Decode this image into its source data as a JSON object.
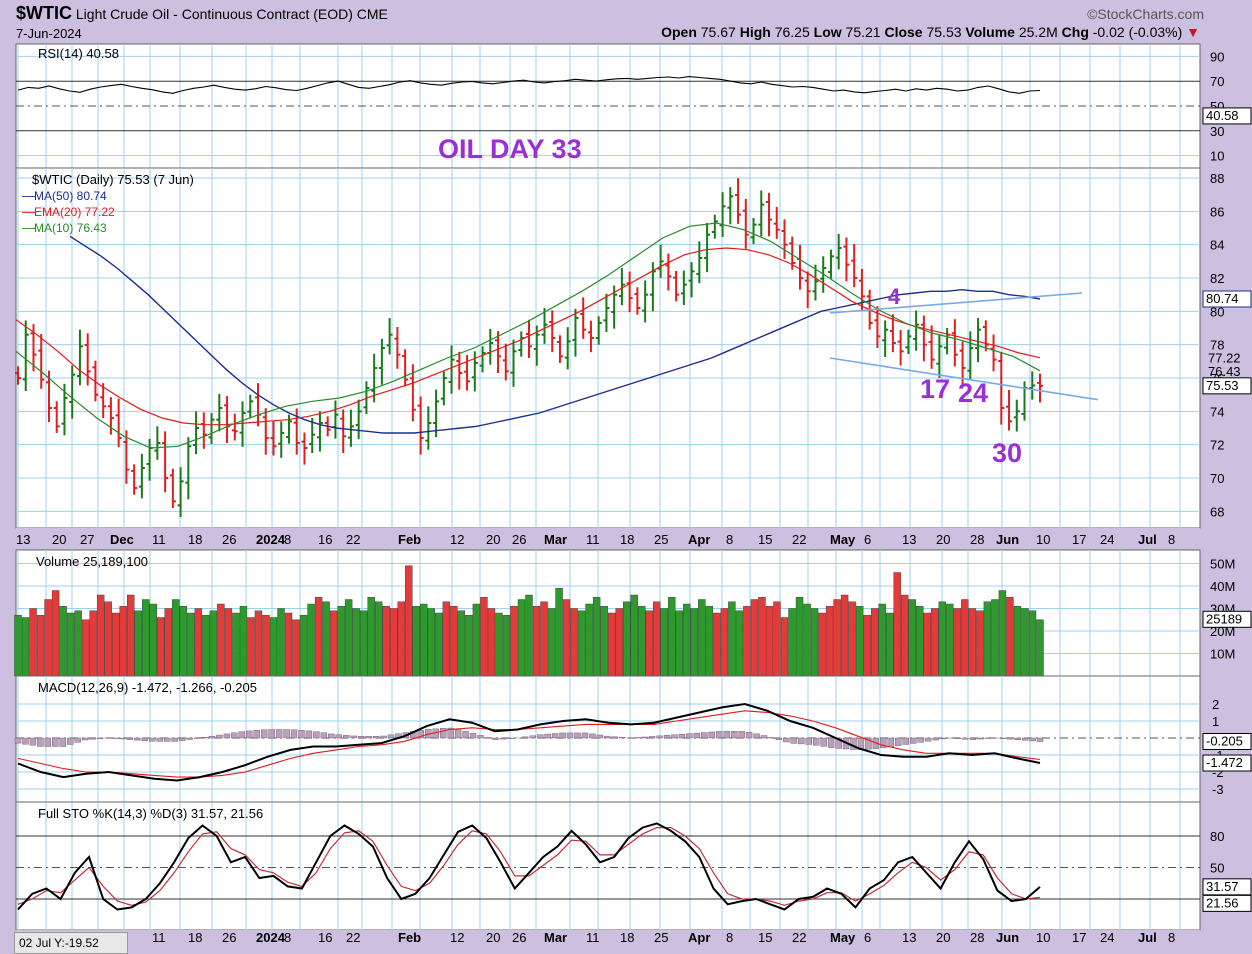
{
  "header": {
    "symbol": "$WTIC",
    "title": "Light Crude Oil - Continuous Contract (EOD)",
    "exchange": "CME",
    "date": "7-Jun-2024",
    "brand": "©StockCharts.com",
    "open_label": "Open",
    "open": "75.67",
    "high_label": "High",
    "high": "76.25",
    "low_label": "Low",
    "low": "75.21",
    "close_label": "Close",
    "close": "75.53",
    "volume_label": "Volume",
    "volume": "25.2M",
    "chg_label": "Chg",
    "chg": "-0.02 (-0.03%)"
  },
  "annotations": {
    "oil_day": "OIL DAY 33",
    "n4": "4",
    "n17": "17",
    "n24": "24",
    "n30": "30"
  },
  "footer": {
    "readout": "02 Jul Y:-19.52"
  },
  "colors": {
    "up": "#1a7a1a",
    "down": "#e01e1e",
    "ma50": "#1f2d8a",
    "ema20": "#e31a1a",
    "ma10": "#2a8a2a",
    "annotation": "#9a2fd9",
    "trend": "#7aa8e8"
  },
  "chart_data": [
    {
      "type": "line",
      "panel": "rsi",
      "legend": "RSI(14) 40.58",
      "ylim": [
        0,
        100
      ],
      "y_ticks": [
        "90",
        "70",
        "50",
        "30",
        "10"
      ],
      "last_value_label": "40.58",
      "values": [
        42,
        48,
        46,
        51,
        45,
        40,
        37,
        44,
        49,
        52,
        55,
        50,
        46,
        43,
        38,
        35,
        41,
        46,
        49,
        53,
        48,
        44,
        42,
        45,
        50,
        47,
        43,
        41,
        46,
        52,
        58,
        62,
        55,
        48,
        46,
        50,
        54,
        60,
        63,
        58,
        55,
        53,
        57,
        60,
        61,
        58,
        56,
        59,
        62,
        64,
        60,
        58,
        61,
        63,
        66,
        64,
        62,
        65,
        67,
        68,
        66,
        68,
        70,
        71,
        69,
        72,
        70,
        68,
        66,
        62,
        58,
        56,
        60,
        55,
        52,
        49,
        50,
        48,
        44,
        40,
        42,
        38,
        36,
        39,
        41,
        44,
        40,
        45,
        42,
        46,
        44,
        40,
        42,
        48,
        51,
        45,
        38,
        35,
        40,
        41
      ]
    },
    {
      "type": "candlestick",
      "panel": "price",
      "legend": "$WTIC (Daily) 75.53 (7 Jun)",
      "series": [
        {
          "name": "MA(50)",
          "legend": "MA(50) 80.74",
          "last": 80.74
        },
        {
          "name": "EMA(20)",
          "legend": "EMA(20) 77.22",
          "last": 77.22
        },
        {
          "name": "MA(10)",
          "legend": "MA(10) 76.43",
          "last": 76.43
        }
      ],
      "ylim": [
        67,
        88.6
      ],
      "y_ticks": [
        "88",
        "86",
        "84",
        "82",
        "80",
        "78",
        "76",
        "74",
        "72",
        "70",
        "68"
      ],
      "right_labels": [
        "80.74",
        "77.22",
        "76.43",
        "75.53"
      ],
      "x_tick_labels": [
        "13",
        "20",
        "27",
        "Dec",
        "11",
        "18",
        "26",
        "2024",
        "8",
        "16",
        "22",
        "Feb",
        "12",
        "20",
        "26",
        "Mar",
        "11",
        "18",
        "25",
        "Apr",
        "8",
        "15",
        "22",
        "May",
        "6",
        "13",
        "20",
        "28",
        "Jun",
        "10",
        "17",
        "24",
        "Jul",
        "8"
      ],
      "closes": [
        76.0,
        78.6,
        77.4,
        75.9,
        74.2,
        73.1,
        74.8,
        76.2,
        77.9,
        76.4,
        75.0,
        74.3,
        73.6,
        72.4,
        70.5,
        69.4,
        70.6,
        71.8,
        72.1,
        70.0,
        68.6,
        69.8,
        71.9,
        73.0,
        72.6,
        73.5,
        74.2,
        73.1,
        72.8,
        73.9,
        74.6,
        73.8,
        72.4,
        71.9,
        72.7,
        73.4,
        72.1,
        71.8,
        72.6,
        73.3,
        72.9,
        73.8,
        72.5,
        73.1,
        74.0,
        75.4,
        76.6,
        77.8,
        78.6,
        77.4,
        75.9,
        74.1,
        72.4,
        73.3,
        74.6,
        76.0,
        77.1,
        76.3,
        75.8,
        76.9,
        77.5,
        78.1,
        77.3,
        76.4,
        77.6,
        78.4,
        77.9,
        78.6,
        79.2,
        78.4,
        77.3,
        78.2,
        79.6,
        78.9,
        78.4,
        79.3,
        80.2,
        81.0,
        81.6,
        80.8,
        80.2,
        81.0,
        82.4,
        83.0,
        82.1,
        81.0,
        81.6,
        82.4,
        83.2,
        84.6,
        85.4,
        86.3,
        86.9,
        85.8,
        84.6,
        85.2,
        86.4,
        85.5,
        84.9,
        84.0,
        82.9,
        82.0,
        81.2,
        81.8,
        82.6,
        83.3,
        83.8,
        82.8,
        82.0,
        80.9,
        79.3,
        78.5,
        78.9,
        78.1,
        77.6,
        78.5,
        79.2,
        78.0,
        77.1,
        77.9,
        78.6,
        77.4,
        76.6,
        77.8,
        78.9,
        78.0,
        77.1,
        74.2,
        73.4,
        74.0,
        75.4,
        75.55,
        75.53
      ],
      "ma50": [
        84.5,
        83.9,
        83.3,
        82.6,
        81.8,
        81.0,
        80.1,
        79.2,
        78.3,
        77.4,
        76.5,
        75.7,
        75.0,
        74.4,
        73.9,
        73.5,
        73.2,
        73.0,
        72.9,
        72.8,
        72.7,
        72.7,
        72.7,
        72.8,
        72.9,
        73.0,
        73.1,
        73.3,
        73.5,
        73.7,
        73.9,
        74.2,
        74.5,
        74.8,
        75.1,
        75.4,
        75.7,
        76.0,
        76.3,
        76.6,
        76.9,
        77.2,
        77.6,
        78.0,
        78.4,
        78.8,
        79.2,
        79.6,
        80.0,
        80.2,
        80.4,
        80.6,
        80.8,
        81.0,
        81.1,
        81.2,
        81.2,
        81.3,
        81.2,
        81.2,
        81.0,
        80.9,
        80.74
      ],
      "ema20": [
        79.5,
        78.6,
        77.6,
        76.5,
        75.6,
        74.8,
        74.1,
        73.6,
        73.3,
        73.2,
        73.2,
        73.3,
        73.4,
        73.5,
        73.7,
        74.0,
        74.4,
        74.9,
        75.3,
        75.7,
        76.2,
        76.7,
        77.2,
        77.7,
        78.2,
        78.8,
        79.4,
        80.0,
        80.7,
        81.4,
        82.1,
        82.8,
        83.4,
        83.7,
        83.8,
        83.7,
        83.4,
        82.9,
        82.2,
        81.4,
        80.6,
        80.0,
        79.5,
        79.1,
        78.8,
        78.5,
        78.2,
        77.9,
        77.5,
        77.22
      ],
      "ma10": [
        77.6,
        76.3,
        74.9,
        73.6,
        72.5,
        71.8,
        71.9,
        72.5,
        73.2,
        73.8,
        74.3,
        74.6,
        74.8,
        75.2,
        75.8,
        76.5,
        77.2,
        77.8,
        78.6,
        79.4,
        80.3,
        81.2,
        82.2,
        83.3,
        84.4,
        85.1,
        85.3,
        84.9,
        84.2,
        83.2,
        82.2,
        81.1,
        80.1,
        79.3,
        78.7,
        78.3,
        77.8,
        77.3,
        76.43
      ]
    },
    {
      "type": "bar",
      "panel": "volume",
      "legend": "Volume 25,189,100",
      "y_ticks": [
        "50M",
        "40M",
        "30M",
        "20M",
        "10M"
      ],
      "last_value_label": "25189",
      "values": [
        27,
        26,
        30,
        27,
        34,
        38,
        31,
        28,
        29,
        25,
        29,
        36,
        33,
        28,
        31,
        36,
        29,
        34,
        32,
        26,
        30,
        34,
        31,
        28,
        30,
        27,
        29,
        32,
        30,
        28,
        31,
        26,
        29,
        27,
        26,
        30,
        28,
        25,
        27,
        32,
        35,
        33,
        29,
        31,
        34,
        30,
        29,
        35,
        33,
        31,
        30,
        33,
        49,
        31,
        32,
        30,
        28,
        33,
        31,
        29,
        27,
        32,
        35,
        30,
        28,
        27,
        31,
        34,
        36,
        31,
        33,
        30,
        39,
        34,
        30,
        29,
        32,
        35,
        31,
        28,
        30,
        33,
        36,
        31,
        29,
        33,
        30,
        35,
        29,
        32,
        30,
        34,
        31,
        28,
        30,
        33,
        29,
        31,
        34,
        35,
        31,
        33,
        26,
        30,
        35,
        32,
        30,
        28,
        31,
        34,
        36,
        33,
        31,
        27,
        30,
        32,
        28,
        46,
        36,
        34,
        31,
        28,
        30,
        33,
        32,
        30,
        34,
        30,
        29,
        33,
        34,
        38,
        35,
        31,
        30,
        29,
        25
      ]
    },
    {
      "type": "line",
      "panel": "macd",
      "legend": "MACD(12,26,9) -1.472, -1.266, -0.205",
      "y_ticks": [
        "2",
        "1",
        "0",
        "-1",
        "-2",
        "-3"
      ],
      "right_labels": [
        "-0.205",
        "-1.472"
      ],
      "macd": [
        -1.5,
        -2.0,
        -2.3,
        -2.1,
        -2.0,
        -2.2,
        -2.4,
        -2.5,
        -2.3,
        -2.0,
        -1.6,
        -1.1,
        -0.7,
        -0.5,
        -0.5,
        -0.4,
        -0.3,
        0.1,
        0.7,
        1.1,
        0.9,
        0.4,
        0.5,
        0.8,
        1.0,
        1.1,
        0.9,
        0.8,
        0.9,
        1.2,
        1.5,
        1.8,
        2.0,
        1.6,
        1.0,
        0.6,
        0.0,
        -0.6,
        -1.0,
        -1.1,
        -1.1,
        -0.9,
        -1.0,
        -0.9,
        -1.2,
        -1.472
      ],
      "signal": [
        -1.2,
        -1.5,
        -1.8,
        -2.0,
        -2.0,
        -2.1,
        -2.2,
        -2.3,
        -2.3,
        -2.2,
        -2.0,
        -1.6,
        -1.2,
        -0.9,
        -0.7,
        -0.5,
        -0.4,
        -0.2,
        0.2,
        0.5,
        0.6,
        0.5,
        0.5,
        0.6,
        0.7,
        0.8,
        0.8,
        0.8,
        0.8,
        1.0,
        1.2,
        1.4,
        1.6,
        1.5,
        1.3,
        1.0,
        0.6,
        0.1,
        -0.4,
        -0.7,
        -0.9,
        -0.9,
        -0.9,
        -0.9,
        -1.1,
        -1.266
      ]
    },
    {
      "type": "line",
      "panel": "stochastic",
      "legend": "Full STO %K(14,3) %D(3) 31.57, 21.56",
      "y_ticks": [
        "80",
        "50",
        "20"
      ],
      "right_labels": [
        "31.57",
        "21.56"
      ],
      "k": [
        10,
        25,
        30,
        20,
        45,
        60,
        20,
        10,
        12,
        20,
        35,
        55,
        78,
        90,
        80,
        55,
        60,
        40,
        42,
        32,
        30,
        55,
        80,
        90,
        82,
        70,
        40,
        20,
        25,
        40,
        62,
        84,
        90,
        78,
        55,
        30,
        45,
        60,
        70,
        85,
        72,
        55,
        60,
        78,
        88,
        92,
        85,
        75,
        60,
        30,
        15,
        18,
        20,
        15,
        10,
        20,
        22,
        30,
        25,
        12,
        30,
        38,
        55,
        60,
        45,
        30,
        55,
        75,
        58,
        28,
        18,
        20,
        31.57
      ],
      "d": [
        15,
        20,
        28,
        26,
        38,
        50,
        32,
        18,
        14,
        17,
        28,
        45,
        65,
        82,
        84,
        68,
        62,
        48,
        45,
        36,
        32,
        45,
        68,
        83,
        85,
        75,
        52,
        32,
        28,
        35,
        52,
        72,
        85,
        82,
        65,
        42,
        42,
        52,
        62,
        76,
        75,
        62,
        62,
        72,
        82,
        88,
        88,
        80,
        68,
        45,
        25,
        20,
        20,
        18,
        14,
        18,
        20,
        26,
        26,
        18,
        25,
        33,
        45,
        55,
        50,
        38,
        48,
        65,
        62,
        40,
        25,
        20,
        21.56
      ]
    }
  ]
}
